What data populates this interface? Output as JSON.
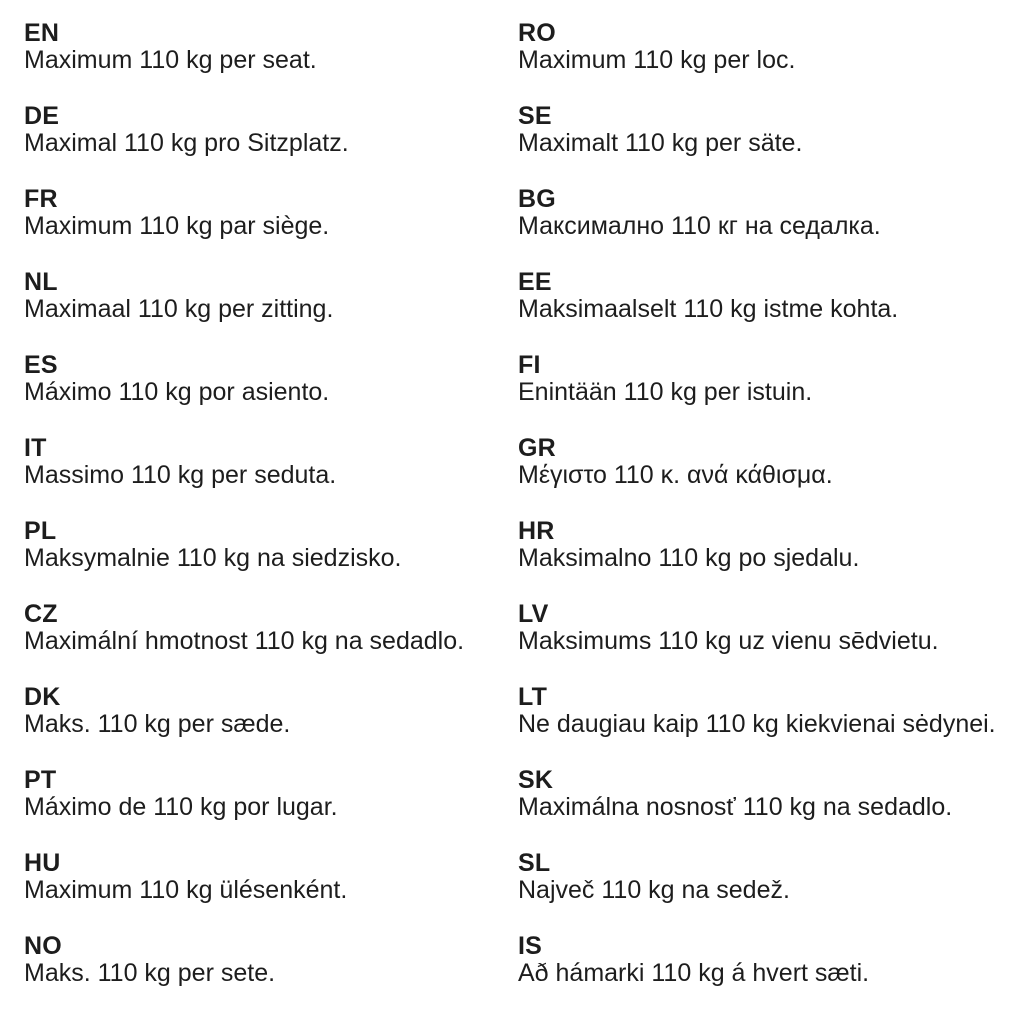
{
  "colors": {
    "background": "#ffffff",
    "text": "#1d1d1d"
  },
  "columns": {
    "left": [
      {
        "code": "EN",
        "text": "Maximum 110 kg per seat."
      },
      {
        "code": "DE",
        "text": "Maximal 110 kg pro Sitzplatz."
      },
      {
        "code": "FR",
        "text": "Maximum 110 kg par siège."
      },
      {
        "code": "NL",
        "text": "Maximaal 110 kg per zitting."
      },
      {
        "code": "ES",
        "text": "Máximo 110 kg por asiento."
      },
      {
        "code": "IT",
        "text": "Massimo 110 kg per seduta."
      },
      {
        "code": "PL",
        "text": "Maksymalnie 110 kg na siedzisko."
      },
      {
        "code": "CZ",
        "text": "Maximální hmotnost 110 kg na sedadlo."
      },
      {
        "code": "DK",
        "text": "Maks. 110 kg per sæde."
      },
      {
        "code": "PT",
        "text": "Máximo de 110 kg por lugar."
      },
      {
        "code": "HU",
        "text": "Maximum 110 kg ülésenként."
      },
      {
        "code": "NO",
        "text": "Maks. 110 kg per sete."
      }
    ],
    "right": [
      {
        "code": "RO",
        "text": "Maximum 110 kg per loc."
      },
      {
        "code": "SE",
        "text": "Maximalt 110 kg per säte."
      },
      {
        "code": "BG",
        "text": "Максимално 110 кг на седалка."
      },
      {
        "code": "EE",
        "text": "Maksimaalselt 110 kg istme kohta."
      },
      {
        "code": "FI",
        "text": "Enintään 110 kg per istuin."
      },
      {
        "code": "GR",
        "text": "Μέγιστο 110 κ. ανά κάθισμα."
      },
      {
        "code": "HR",
        "text": "Maksimalno 110 kg po sjedalu."
      },
      {
        "code": "LV",
        "text": "Maksimums 110 kg uz vienu sēdvietu."
      },
      {
        "code": "LT",
        "text": "Ne daugiau kaip 110 kg kiekvienai sėdynei."
      },
      {
        "code": "SK",
        "text": "Maximálna nosnosť 110 kg na sedadlo."
      },
      {
        "code": "SL",
        "text": "Največ 110 kg na sedež."
      },
      {
        "code": "IS",
        "text": "Að hámarki 110 kg á hvert sæti."
      }
    ]
  }
}
